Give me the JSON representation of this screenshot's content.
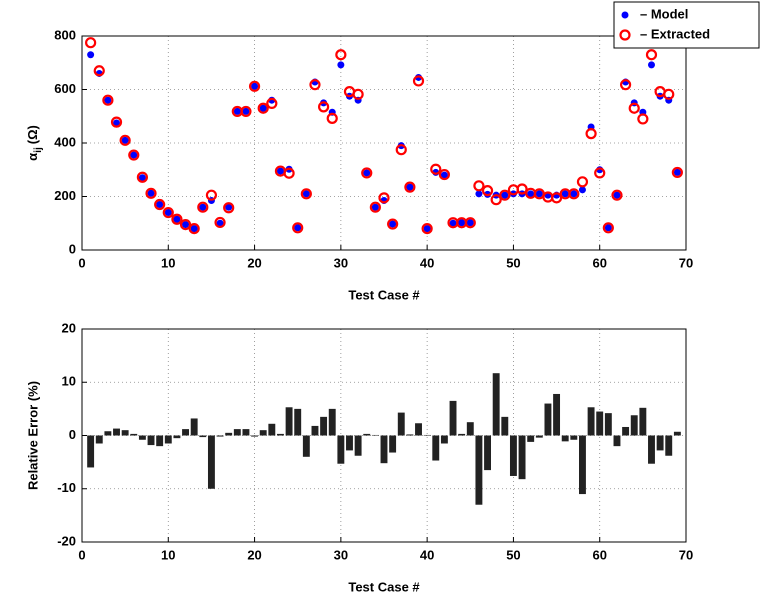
{
  "chart_data": [
    {
      "type": "scatter",
      "xlabel": "Test Case #",
      "ylabel_base": "α",
      "ylabel_sub": "ij",
      "ylabel_unit": "(Ω)",
      "xlim": [
        0,
        70
      ],
      "xticks": [
        0,
        10,
        20,
        30,
        40,
        50,
        60,
        70
      ],
      "ylim": [
        0,
        800
      ],
      "yticks": [
        0,
        200,
        400,
        600,
        800
      ],
      "grid": true,
      "legend": "upper right",
      "x": [
        1,
        2,
        3,
        4,
        5,
        6,
        7,
        8,
        9,
        10,
        11,
        12,
        13,
        14,
        15,
        16,
        17,
        18,
        19,
        20,
        21,
        22,
        23,
        24,
        25,
        26,
        27,
        28,
        29,
        30,
        31,
        32,
        33,
        34,
        35,
        36,
        37,
        38,
        39,
        40,
        41,
        42,
        43,
        44,
        45,
        46,
        47,
        48,
        49,
        50,
        51,
        52,
        53,
        54,
        55,
        56,
        57,
        58,
        59,
        60,
        61,
        62,
        63,
        64,
        65,
        66,
        67,
        68,
        69
      ],
      "series": [
        {
          "name": "– Model",
          "color": "#0000ff",
          "marker": "filled",
          "values": [
            730,
            660,
            560,
            475,
            410,
            355,
            270,
            212,
            170,
            140,
            115,
            95,
            80,
            160,
            185,
            100,
            160,
            518,
            518,
            612,
            530,
            560,
            295,
            302,
            83,
            210,
            628,
            550,
            515,
            692,
            575,
            560,
            288,
            160,
            185,
            97,
            390,
            235,
            645,
            80,
            290,
            280,
            100,
            102,
            102,
            210,
            208,
            205,
            205,
            210,
            210,
            210,
            210,
            205,
            205,
            210,
            210,
            225,
            460,
            300,
            83,
            205,
            628,
            550,
            515,
            692,
            575,
            560,
            290
          ]
        },
        {
          "name": "– Extracted",
          "color": "#ff0000",
          "marker": "open",
          "values": [
            775,
            670,
            560,
            478,
            410,
            355,
            272,
            212,
            170,
            140,
            115,
            95,
            80,
            160,
            205,
            103,
            158,
            518,
            518,
            612,
            530,
            548,
            295,
            287,
            83,
            210,
            618,
            535,
            492,
            730,
            592,
            582,
            288,
            160,
            195,
            97,
            375,
            235,
            632,
            80,
            302,
            282,
            102,
            102,
            102,
            240,
            222,
            188,
            205,
            225,
            228,
            212,
            210,
            198,
            195,
            210,
            210,
            255,
            435,
            288,
            83,
            205,
            618,
            530,
            490,
            730,
            592,
            582,
            290
          ]
        }
      ]
    },
    {
      "type": "bar",
      "xlabel": "Test Case #",
      "ylabel": "Relative Error (%)",
      "xlim": [
        0,
        70
      ],
      "xticks": [
        0,
        10,
        20,
        30,
        40,
        50,
        60,
        70
      ],
      "ylim": [
        -20,
        20
      ],
      "yticks": [
        -20,
        -10,
        0,
        10,
        20
      ],
      "grid": true,
      "color": "#222222",
      "x": [
        1,
        2,
        3,
        4,
        5,
        6,
        7,
        8,
        9,
        10,
        11,
        12,
        13,
        14,
        15,
        16,
        17,
        18,
        19,
        20,
        21,
        22,
        23,
        24,
        25,
        26,
        27,
        28,
        29,
        30,
        31,
        32,
        33,
        34,
        35,
        36,
        37,
        38,
        39,
        40,
        41,
        42,
        43,
        44,
        45,
        46,
        47,
        48,
        49,
        50,
        51,
        52,
        53,
        54,
        55,
        56,
        57,
        58,
        59,
        60,
        61,
        62,
        63,
        64,
        65,
        66,
        67,
        68,
        69
      ],
      "values": [
        -6,
        -1.5,
        0.8,
        1.3,
        1,
        0.3,
        -0.8,
        -1.8,
        -2,
        -1.5,
        -0.5,
        1.2,
        3.2,
        -0.3,
        -10,
        -0.2,
        0.5,
        1.2,
        1.2,
        -0.2,
        1,
        2.2,
        0.3,
        5.3,
        5,
        -4,
        1.8,
        3.5,
        5,
        -5.3,
        -2.8,
        -3.8,
        0.3,
        0.1,
        -5.2,
        -3.2,
        4.3,
        0.2,
        2.3,
        0.1,
        -4.7,
        -1.5,
        6.5,
        0.3,
        2.5,
        -13,
        -6.5,
        11.7,
        3.5,
        -7.6,
        -8.2,
        -1.2,
        -0.4,
        6,
        7.8,
        -1.1,
        -0.8,
        -11,
        5.3,
        4.5,
        4.2,
        -2,
        1.6,
        3.8,
        5.2,
        -5.3,
        -2.8,
        -3.8,
        0.7
      ]
    }
  ]
}
